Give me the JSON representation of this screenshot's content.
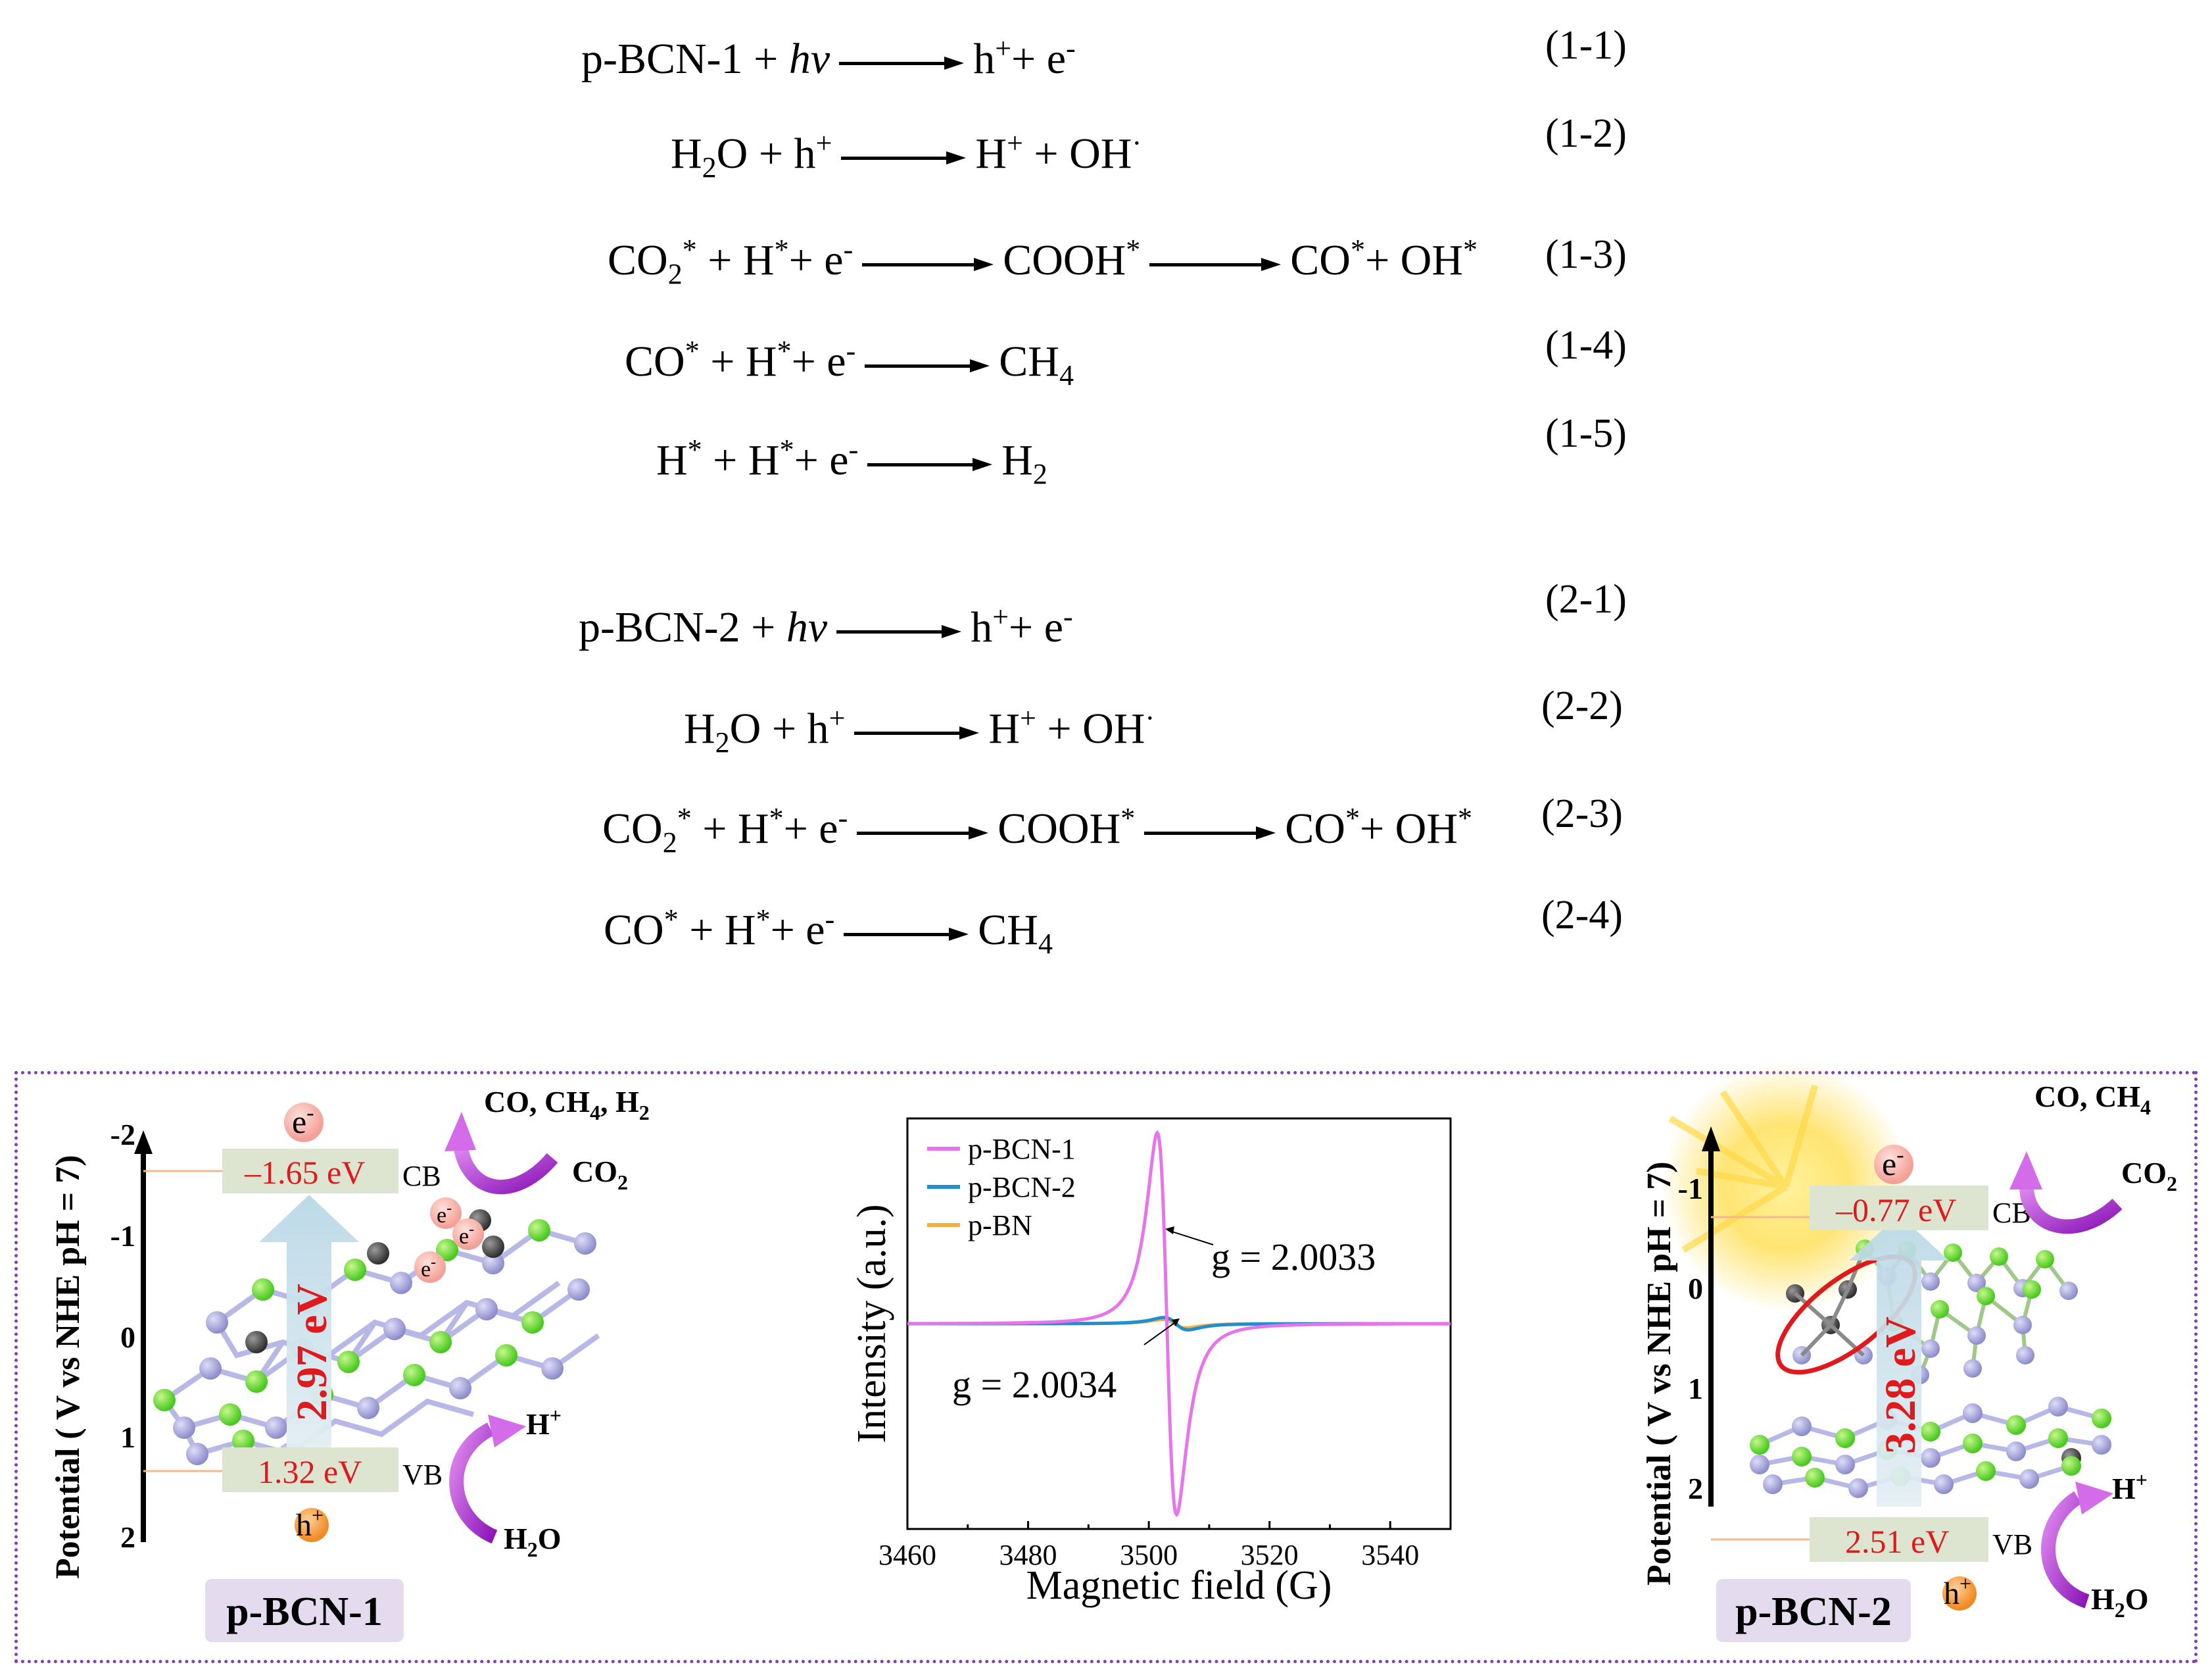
{
  "equations_group1": [
    {
      "num": "(1-1)",
      "lhs_main": "p-BCN-1",
      "plus": "+",
      "hv": "hv",
      "rhs": "h",
      "rhs_sup": "+",
      "rhs2": "+  e",
      "rhs2_sup": "-"
    },
    {
      "num": "(1-2)",
      "lhs": "H",
      "lhs_sub": "2",
      "lhs2": "O + h",
      "lhs_sup": "+",
      "rhs": "H",
      "rhs_sup": "+",
      "rhs2": " +  OH",
      "rhs2_sup": "·"
    },
    {
      "num": "(1-3)",
      "lhs": "CO",
      "lhs_sub": "2",
      "lhs_sup": "*",
      "lhs2": " + H",
      "lhs2_sup": "*",
      "lhs3": "+ e",
      "lhs3_sup": "-",
      "mid": "COOH",
      "mid_sup": "*",
      "rhs": "CO",
      "rhs_sup": "*",
      "rhs2": "+ OH",
      "rhs2_sup": "*"
    },
    {
      "num": "(1-4)",
      "lhs": "CO",
      "lhs_sup": "*",
      "lhs2": " + H",
      "lhs2_sup": "*",
      "lhs3": "+ e",
      "lhs3_sup": "-",
      "rhs": "CH",
      "rhs_sub": "4"
    },
    {
      "num": "(1-5)",
      "lhs": "H",
      "lhs_sup": "*",
      "lhs2": " + H",
      "lhs2_sup": "*",
      "lhs3": "+ e",
      "lhs3_sup": "-",
      "rhs": "H",
      "rhs_sub": "2"
    }
  ],
  "equations_group2": [
    {
      "num": "(2-1)",
      "lhs_main": "p-BCN-2",
      "plus": "+",
      "hv": "hv",
      "rhs": "h",
      "rhs_sup": "+",
      "rhs2": "+  e",
      "rhs2_sup": "-"
    },
    {
      "num": "(2-2)",
      "lhs": "H",
      "lhs_sub": "2",
      "lhs2": "O + h",
      "lhs_sup": "+",
      "rhs": "H",
      "rhs_sup": "+",
      "rhs2": " +  OH",
      "rhs2_sup": "·"
    },
    {
      "num": "(2-3)",
      "lhs": "CO",
      "lhs_sub": "2",
      "lhs_sup": "*",
      "lhs2": " + H",
      "lhs2_sup": "*",
      "lhs3": "+ e",
      "lhs3_sup": "-",
      "mid": "COOH",
      "mid_sup": "*",
      "rhs": "CO",
      "rhs_sup": "*",
      "rhs2": "+ OH",
      "rhs2_sup": "*"
    },
    {
      "num": "(2-4)",
      "lhs": "CO",
      "lhs_sup": "*",
      "lhs2": " + H",
      "lhs2_sup": "*",
      "lhs3": "+ e",
      "lhs3_sup": "-",
      "rhs": "CH",
      "rhs_sub": "4"
    }
  ],
  "left_panel": {
    "axis_label": "Potential ( V vs NHE pH = 7)",
    "ticks": [
      "-2",
      "-1",
      "0",
      "1",
      "2"
    ],
    "cb_value": "–1.65 eV",
    "cb_label": "CB",
    "vb_value": "1.32 eV",
    "vb_label": "VB",
    "gap": "2.97 eV",
    "electron": "e",
    "electron_sup": "-",
    "hole": "h",
    "hole_sup": "+",
    "product_top": "CO, CH",
    "product_top_sub": "4",
    "product_top_2": ", H",
    "product_top_sub2": "2",
    "reactant_top": "CO",
    "reactant_top_sub": "2",
    "product_bottom": "H",
    "product_bottom_sup": "+",
    "reactant_bottom": "H",
    "reactant_bottom_sub": "2",
    "reactant_bottom_2": "O",
    "name": "p-BCN-1"
  },
  "right_panel": {
    "axis_label": "Potential ( V vs NHE pH = 7)",
    "ticks": [
      "-1",
      "0",
      "1",
      "2"
    ],
    "cb_value": "–0.77 eV",
    "cb_label": "CB",
    "vb_value": "2.51 eV",
    "vb_label": "VB",
    "gap": "3.28 eV",
    "electron": "e",
    "electron_sup": "-",
    "hole": "h",
    "hole_sup": "+",
    "product_top": "CO, CH",
    "product_top_sub": "4",
    "reactant_top": "CO",
    "reactant_top_sub": "2",
    "product_bottom": "H",
    "product_bottom_sup": "+",
    "reactant_bottom": "H",
    "reactant_bottom_sub": "2",
    "reactant_bottom_2": "O",
    "name": "p-BCN-2"
  },
  "colors": {
    "pink": "#e774ea",
    "blue": "#1f8fd1",
    "orange": "#f3b041",
    "red": "#e0191d",
    "panel_border": "#7b3fb6",
    "label_bg": "#dde5d0",
    "name_bg": "#e4dcee",
    "arrow_purple": "#b02fd6"
  },
  "chart_data": {
    "type": "line",
    "title": "",
    "xlabel": "Magnetic field (G)",
    "ylabel": "Intensity (a.u.)",
    "xlim": [
      3460,
      3550
    ],
    "ylim": [
      -1.0,
      1.0
    ],
    "xticks": [
      "3460",
      "3480",
      "3500",
      "3520",
      "3540"
    ],
    "legend_position": "top-left",
    "series": [
      {
        "name": "p-BCN-1",
        "color": "#e774ea",
        "center": 3503,
        "amplitude": 0.93,
        "width": 1.6
      },
      {
        "name": "p-BCN-2",
        "color": "#1f8fd1",
        "center": 3504.5,
        "amplitude": 0.03,
        "width": 2.0
      },
      {
        "name": "p-BN",
        "color": "#f3b041",
        "center": 3504.2,
        "amplitude": 0.02,
        "width": 2.0
      }
    ],
    "annotations": [
      {
        "text": "g = 2.0033",
        "points_to": "p-BCN-1"
      },
      {
        "text": "g = 2.0034",
        "points_to": "p-BCN-2"
      }
    ]
  }
}
